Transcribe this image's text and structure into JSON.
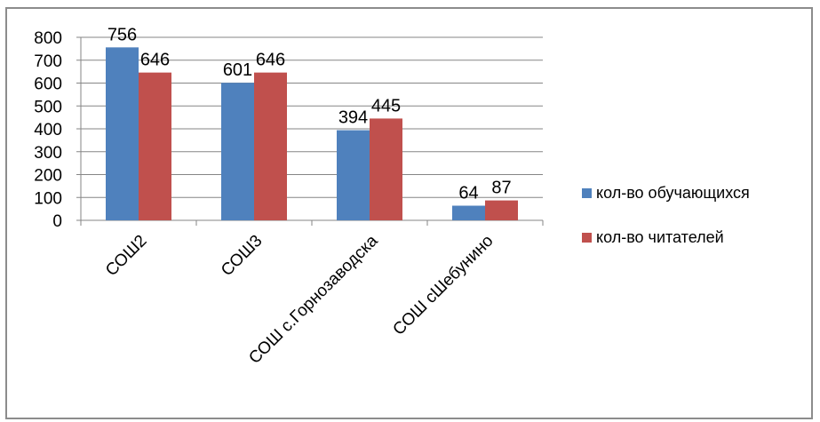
{
  "chart_data": {
    "type": "bar",
    "categories": [
      "СОШ2",
      "СОШ3",
      "СОШ с.Горнозаводска",
      "СОШ сШебунино"
    ],
    "series": [
      {
        "name": "кол-во обучающихся",
        "values": [
          756,
          601,
          394,
          64
        ],
        "color": "#4f81bd"
      },
      {
        "name": "кол-во читателей",
        "values": [
          646,
          646,
          445,
          87
        ],
        "color": "#c0504d"
      }
    ],
    "yticks": [
      "0",
      "100",
      "200",
      "300",
      "400",
      "500",
      "600",
      "700",
      "800"
    ],
    "ylim": [
      0,
      800
    ],
    "grid": true,
    "legend_position": "right",
    "title": "",
    "xlabel": "",
    "ylabel": ""
  }
}
